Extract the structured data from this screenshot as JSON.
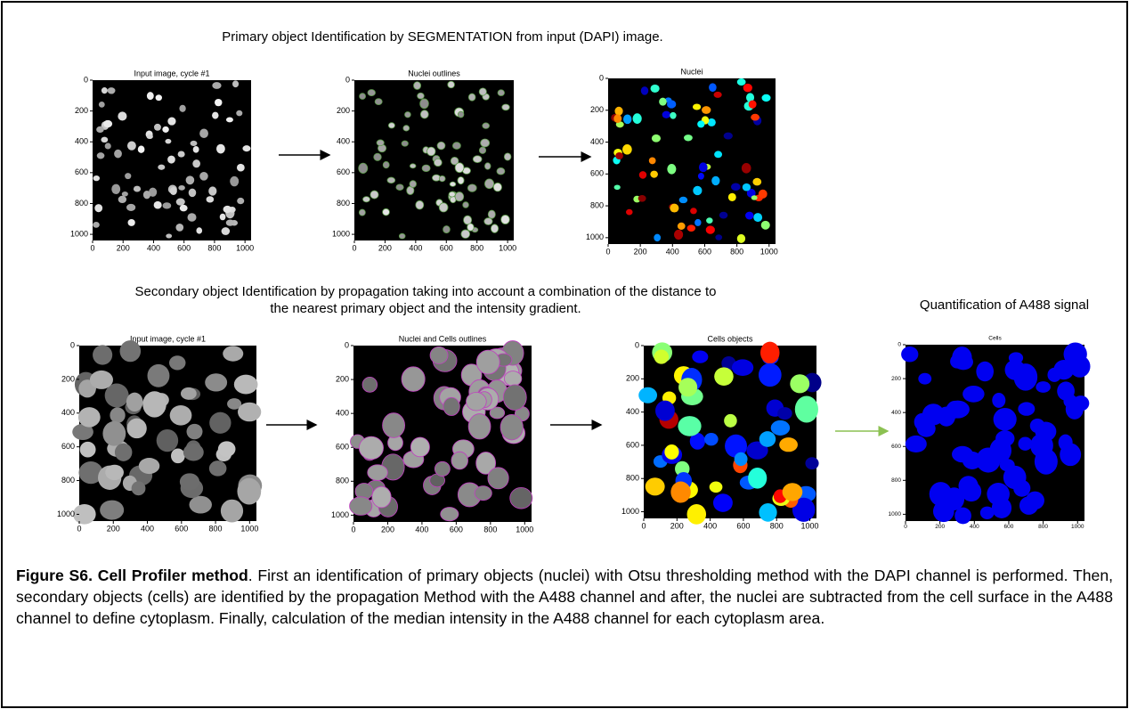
{
  "header": {
    "primary": "Primary object Identification by SEGMENTATION from input (DAPI) image.",
    "secondary": [
      "Secondary object Identification by propagation taking into account a combination  of the distance to",
      "the nearest primary object and the intensity gradient."
    ],
    "quantification": "Quantification of A488 signal"
  },
  "panels": [
    {
      "title": "Input image, cycle #1",
      "style": "gray-nuclei",
      "xticks": [
        0,
        200,
        400,
        600,
        800,
        1000
      ],
      "yticks": [
        0,
        200,
        400,
        600,
        800,
        1000
      ]
    },
    {
      "title": "Nuclei outlines",
      "style": "green-nuclei",
      "xticks": [
        0,
        200,
        400,
        600,
        800,
        1000
      ],
      "yticks": [
        0,
        200,
        400,
        600,
        800,
        1000
      ]
    },
    {
      "title": "Nuclei",
      "style": "jet-nuclei",
      "xticks": [
        0,
        200,
        400,
        600,
        800,
        1000
      ],
      "yticks": [
        0,
        200,
        400,
        600,
        800,
        1000
      ]
    },
    {
      "title": "Input image, cycle #1",
      "style": "gray-cells",
      "xticks": [
        0,
        200,
        400,
        600,
        800,
        1000
      ],
      "yticks": [
        0,
        200,
        400,
        600,
        800,
        1000
      ]
    },
    {
      "title": "Nuclei and Cells outlines",
      "style": "magenta-cells",
      "xticks": [
        0,
        200,
        400,
        600,
        800,
        1000
      ],
      "yticks": [
        0,
        200,
        400,
        600,
        800,
        1000
      ]
    },
    {
      "title": "Cells objects",
      "style": "jet-cells",
      "xticks": [
        0,
        200,
        400,
        600,
        800,
        1000
      ],
      "yticks": [
        0,
        200,
        400,
        600,
        800,
        1000
      ]
    },
    {
      "title": "Cells",
      "style": "blue-cells",
      "xticks": [
        0,
        200,
        400,
        600,
        800,
        1000
      ],
      "yticks": [
        0,
        200,
        400,
        600,
        800,
        1000
      ]
    }
  ],
  "caption": {
    "label": "Figure S6. Cell Profiler method",
    "text": ". First an identification of primary objects (nuclei) with Otsu thresholding method with the DAPI channel is performed. Then, secondary objects (cells) are identified by the propagation Method with the A488 channel and after, the nuclei are subtracted from the cell surface in the A488 channel to define cytoplasm. Finally, calculation of the median intensity in the A488 channel for each cytoplasm area."
  }
}
